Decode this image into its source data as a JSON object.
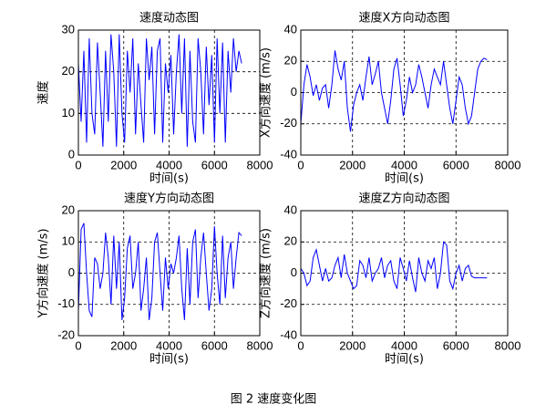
{
  "chart_data": [
    {
      "type": "line",
      "title": "速度动态图",
      "xlabel": "时间(s)",
      "ylabel": "速度",
      "x": [
        0,
        120,
        240,
        360,
        480,
        600,
        720,
        840,
        960,
        1080,
        1200,
        1320,
        1440,
        1560,
        1680,
        1800,
        1920,
        2040,
        2160,
        2280,
        2400,
        2520,
        2640,
        2760,
        2880,
        3000,
        3120,
        3240,
        3360,
        3480,
        3600,
        3720,
        3840,
        3960,
        4080,
        4200,
        4320,
        4440,
        4560,
        4680,
        4800,
        4920,
        5040,
        5160,
        5280,
        5400,
        5520,
        5640,
        5760,
        5880,
        6000,
        6120,
        6240,
        6360,
        6480,
        6600,
        6720,
        6840,
        6960,
        7080,
        7200
      ],
      "series": [
        {
          "color": "#0000ff",
          "values": [
            22,
            8,
            25,
            3,
            28,
            10,
            5,
            27,
            15,
            2,
            25,
            8,
            29,
            20,
            2,
            29,
            10,
            3,
            25,
            15,
            28,
            5,
            22,
            12,
            3,
            28,
            18,
            26,
            5,
            25,
            28,
            3,
            22,
            15,
            24,
            5,
            20,
            29,
            10,
            28,
            2,
            25,
            8,
            3,
            28,
            20,
            5,
            26,
            12,
            24,
            3,
            28,
            10,
            27,
            3,
            25,
            15,
            28,
            20,
            25,
            22
          ]
        }
      ],
      "xlim": [
        0,
        8000
      ],
      "xticks": [
        0,
        2000,
        4000,
        6000,
        8000
      ],
      "ylim": [
        0,
        30
      ],
      "yticks": [
        0,
        10,
        20,
        30
      ],
      "grid": true
    },
    {
      "type": "line",
      "title": "速度X方向动态图",
      "xlabel": "时间(s)",
      "ylabel": "X方向速度 (m/s)",
      "x": [
        0,
        120,
        240,
        360,
        480,
        600,
        720,
        840,
        960,
        1080,
        1200,
        1320,
        1440,
        1560,
        1680,
        1800,
        1920,
        2040,
        2160,
        2280,
        2400,
        2520,
        2640,
        2760,
        2880,
        3000,
        3120,
        3240,
        3360,
        3480,
        3600,
        3720,
        3840,
        3960,
        4080,
        4200,
        4320,
        4440,
        4560,
        4680,
        4800,
        4920,
        5040,
        5160,
        5280,
        5400,
        5520,
        5640,
        5760,
        5880,
        6000,
        6120,
        6240,
        6360,
        6480,
        6600,
        6720,
        6840,
        6960,
        7080,
        7200
      ],
      "series": [
        {
          "color": "#0000ff",
          "values": [
            -20,
            5,
            18,
            10,
            -2,
            5,
            -5,
            3,
            5,
            -10,
            5,
            27,
            15,
            8,
            20,
            -10,
            -25,
            -8,
            0,
            5,
            -5,
            10,
            23,
            5,
            12,
            20,
            0,
            -10,
            -20,
            -5,
            15,
            22,
            5,
            -15,
            -5,
            10,
            0,
            5,
            18,
            10,
            0,
            -10,
            5,
            15,
            10,
            5,
            20,
            5,
            -10,
            -20,
            -5,
            10,
            5,
            -10,
            -20,
            -15,
            0,
            15,
            20,
            22,
            21
          ]
        }
      ],
      "xlim": [
        0,
        8000
      ],
      "xticks": [
        0,
        2000,
        4000,
        6000,
        8000
      ],
      "ylim": [
        -40,
        40
      ],
      "yticks": [
        -40,
        -20,
        0,
        20,
        40
      ],
      "grid": true
    },
    {
      "type": "line",
      "title": "速度Y方向动态图",
      "xlabel": "时间(s)",
      "ylabel": "Y方向速度 (m/s)",
      "x": [
        0,
        120,
        240,
        360,
        480,
        600,
        720,
        840,
        960,
        1080,
        1200,
        1320,
        1440,
        1560,
        1680,
        1800,
        1920,
        2040,
        2160,
        2280,
        2400,
        2520,
        2640,
        2760,
        2880,
        3000,
        3120,
        3240,
        3360,
        3480,
        3600,
        3720,
        3840,
        3960,
        4080,
        4200,
        4320,
        4440,
        4560,
        4680,
        4800,
        4920,
        5040,
        5160,
        5280,
        5400,
        5520,
        5640,
        5760,
        5880,
        6000,
        6120,
        6240,
        6360,
        6480,
        6600,
        6720,
        6840,
        6960,
        7080,
        7200
      ],
      "series": [
        {
          "color": "#0000ff",
          "values": [
            -12,
            14,
            16,
            0,
            -12,
            -14,
            5,
            3,
            -5,
            0,
            13,
            5,
            -10,
            12,
            -5,
            10,
            -15,
            -8,
            8,
            12,
            -5,
            0,
            10,
            -12,
            -5,
            5,
            -15,
            -8,
            10,
            13,
            0,
            -12,
            5,
            -5,
            3,
            0,
            5,
            12,
            -5,
            -15,
            8,
            -10,
            10,
            14,
            -8,
            5,
            13,
            0,
            -12,
            -5,
            15,
            0,
            -10,
            12,
            -8,
            5,
            10,
            -5,
            5,
            13,
            12
          ]
        }
      ],
      "xlim": [
        0,
        8000
      ],
      "xticks": [
        0,
        2000,
        4000,
        6000,
        8000
      ],
      "ylim": [
        -20,
        20
      ],
      "yticks": [
        -20,
        -10,
        0,
        10,
        20
      ],
      "grid": true
    },
    {
      "type": "line",
      "title": "速度Z方向动态图",
      "xlabel": "时间(s)",
      "ylabel": "Z方向速度 (m/s)",
      "x": [
        0,
        120,
        240,
        360,
        480,
        600,
        720,
        840,
        960,
        1080,
        1200,
        1320,
        1440,
        1560,
        1680,
        1800,
        1920,
        2040,
        2160,
        2280,
        2400,
        2520,
        2640,
        2760,
        2880,
        3000,
        3120,
        3240,
        3360,
        3480,
        3600,
        3720,
        3840,
        3960,
        4080,
        4200,
        4320,
        4440,
        4560,
        4680,
        4800,
        4920,
        5040,
        5160,
        5280,
        5400,
        5520,
        5640,
        5760,
        5880,
        6000,
        6120,
        6240,
        6360,
        6480,
        6600,
        6720,
        6840,
        6960,
        7080,
        7200
      ],
      "series": [
        {
          "color": "#0000ff",
          "values": [
            3,
            0,
            -8,
            -5,
            10,
            15,
            5,
            -5,
            3,
            -5,
            -3,
            5,
            10,
            -3,
            12,
            0,
            -5,
            -10,
            -8,
            8,
            5,
            -3,
            10,
            -5,
            0,
            3,
            10,
            -3,
            5,
            8,
            -5,
            -10,
            10,
            3,
            -5,
            8,
            -3,
            -12,
            10,
            0,
            -5,
            8,
            3,
            10,
            -10,
            0,
            20,
            18,
            -5,
            -10,
            0,
            5,
            -5,
            3,
            5,
            -2,
            -3,
            -3,
            -3,
            -3,
            -3
          ]
        }
      ],
      "xlim": [
        0,
        8000
      ],
      "xticks": [
        0,
        2000,
        4000,
        6000,
        8000
      ],
      "ylim": [
        -40,
        40
      ],
      "yticks": [
        -40,
        -20,
        0,
        20,
        40
      ],
      "grid": true
    }
  ],
  "caption": "图 2 速度变化图"
}
